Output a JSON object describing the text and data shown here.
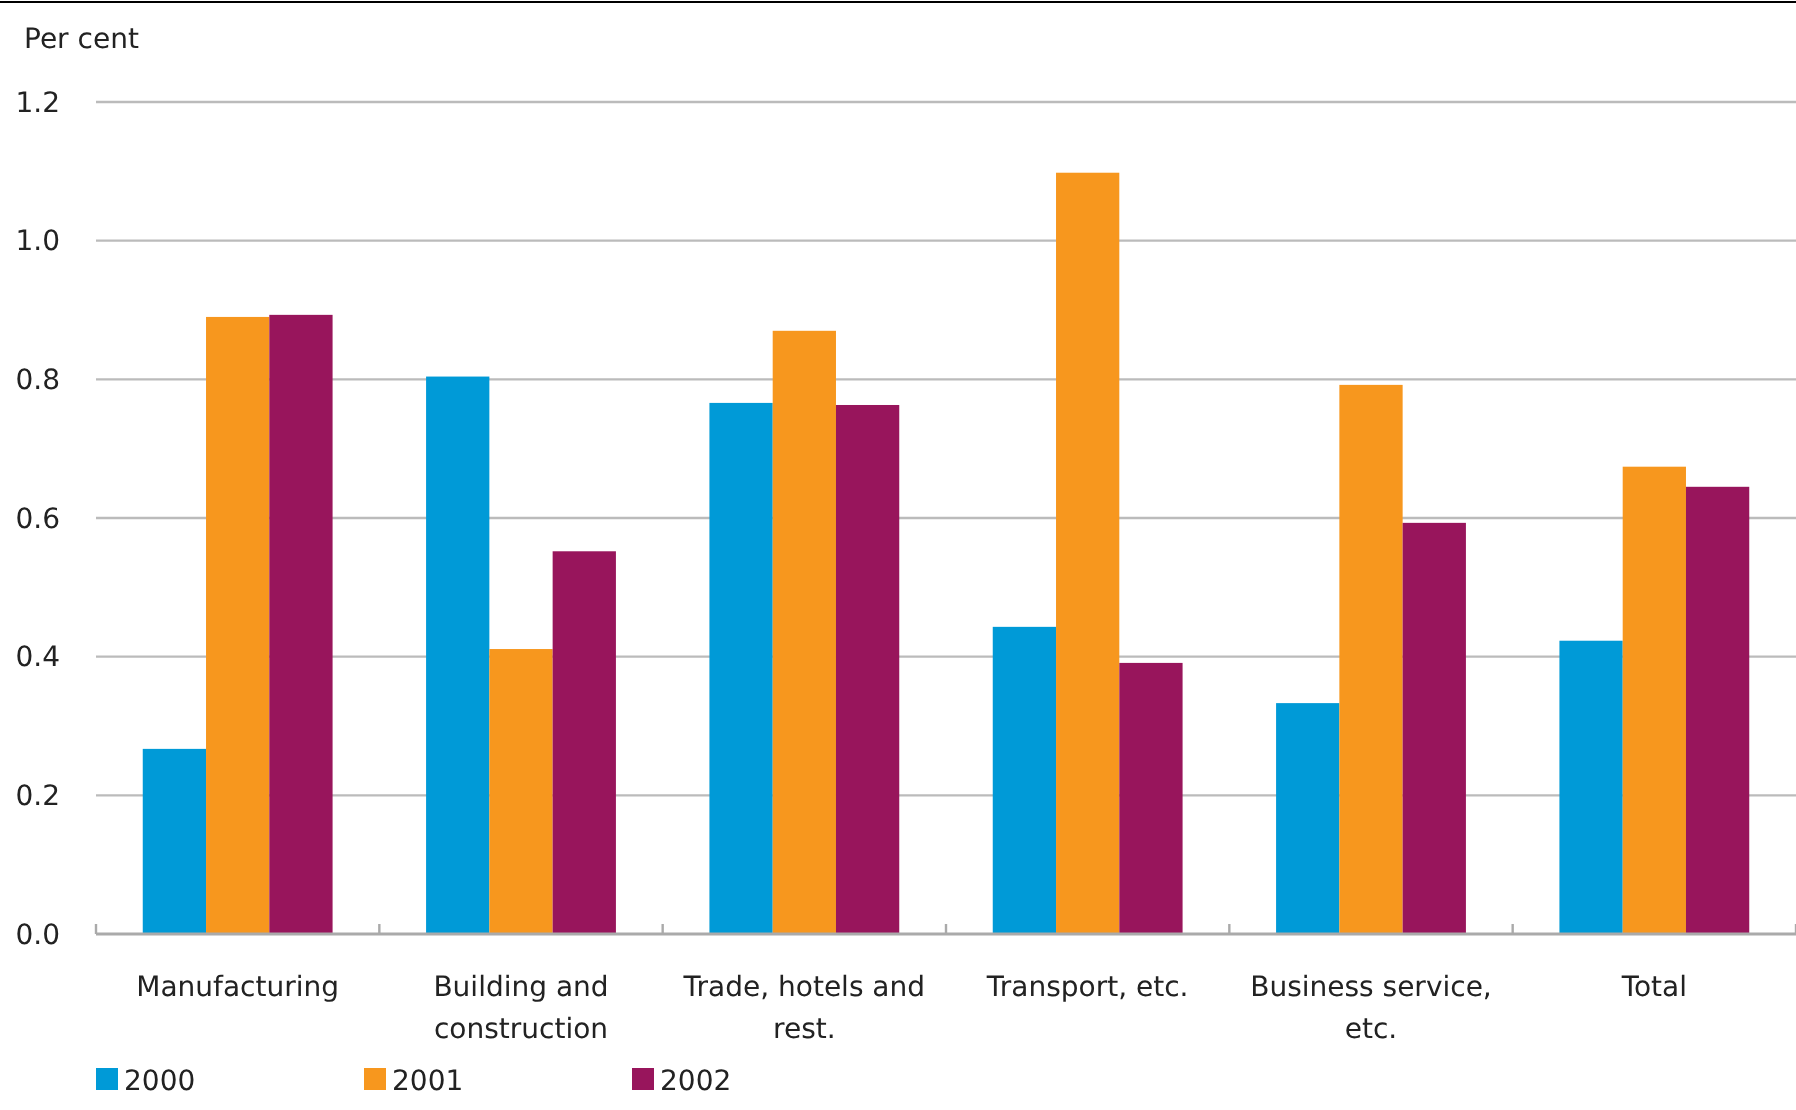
{
  "chart_data": {
    "type": "bar",
    "ylabel": "Per cent",
    "categories": [
      "Manufacturing",
      "Building and construction",
      "Trade, hotels and rest.",
      "Transport, etc.",
      "Business service, etc.",
      "Total"
    ],
    "series": [
      {
        "name": "2000",
        "color": "#009ad7",
        "values": [
          0.267,
          0.804,
          0.766,
          0.443,
          0.333,
          0.423
        ]
      },
      {
        "name": "2001",
        "color": "#f7971e",
        "values": [
          0.89,
          0.411,
          0.87,
          1.098,
          0.792,
          0.674
        ]
      },
      {
        "name": "2002",
        "color": "#98155c",
        "values": [
          0.893,
          0.552,
          0.763,
          0.391,
          0.593,
          0.645
        ]
      }
    ],
    "ylim": [
      0,
      1.2
    ],
    "yticks": [
      {
        "value": 0,
        "label": "0.0"
      },
      0.2,
      0.4,
      0.6,
      0.8,
      {
        "value": 1,
        "label": "1.0"
      },
      1.2
    ],
    "grid": "y",
    "legend": "bottom left"
  }
}
